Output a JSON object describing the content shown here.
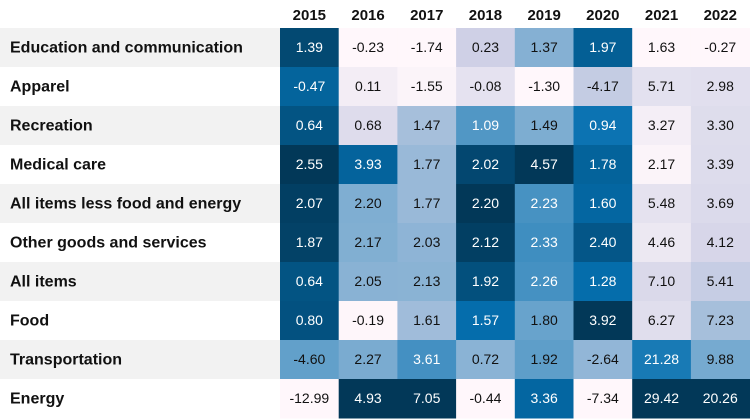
{
  "chart_data": {
    "type": "heatmap",
    "title": "",
    "columns": [
      "2015",
      "2016",
      "2017",
      "2018",
      "2019",
      "2020",
      "2021",
      "2022"
    ],
    "rows": [
      {
        "label": "Education and communication",
        "values": [
          1.39,
          -0.23,
          -1.74,
          0.23,
          1.37,
          1.97,
          1.63,
          -0.27
        ]
      },
      {
        "label": "Apparel",
        "values": [
          -0.47,
          0.11,
          -1.55,
          -0.08,
          -1.3,
          -4.17,
          5.71,
          2.98
        ]
      },
      {
        "label": "Recreation",
        "values": [
          0.64,
          0.68,
          1.47,
          1.09,
          1.49,
          0.94,
          3.27,
          3.3
        ]
      },
      {
        "label": "Medical care",
        "values": [
          2.55,
          3.93,
          1.77,
          2.02,
          4.57,
          1.78,
          2.17,
          3.39
        ]
      },
      {
        "label": "All items less food and energy",
        "values": [
          2.07,
          2.2,
          1.77,
          2.2,
          2.23,
          1.6,
          5.48,
          3.69
        ]
      },
      {
        "label": "Other goods and services",
        "values": [
          1.87,
          2.17,
          2.03,
          2.12,
          2.33,
          2.4,
          4.46,
          4.12
        ]
      },
      {
        "label": "All items",
        "values": [
          0.64,
          2.05,
          2.13,
          1.92,
          2.26,
          1.28,
          7.1,
          5.41
        ]
      },
      {
        "label": "Food",
        "values": [
          0.8,
          -0.19,
          1.61,
          1.57,
          1.8,
          3.92,
          6.27,
          7.23
        ]
      },
      {
        "label": "Transportation",
        "values": [
          -4.6,
          2.27,
          3.61,
          0.72,
          1.92,
          -2.64,
          21.28,
          9.88
        ]
      },
      {
        "label": "Energy",
        "values": [
          -12.99,
          4.93,
          7.05,
          -0.44,
          3.36,
          -7.34,
          29.42,
          20.26
        ]
      }
    ],
    "color_scale": "per-column sequential, light pink (low) to dark blue (high)",
    "colors": {
      "low": "#fff7fb",
      "mid_low": "#d0d1e6",
      "mid": "#74a9cf",
      "mid_high": "#0570b0",
      "high": "#023858",
      "stripe": "#f2f2f2",
      "text_dark": "#111111",
      "text_light": "#ffffff"
    }
  }
}
